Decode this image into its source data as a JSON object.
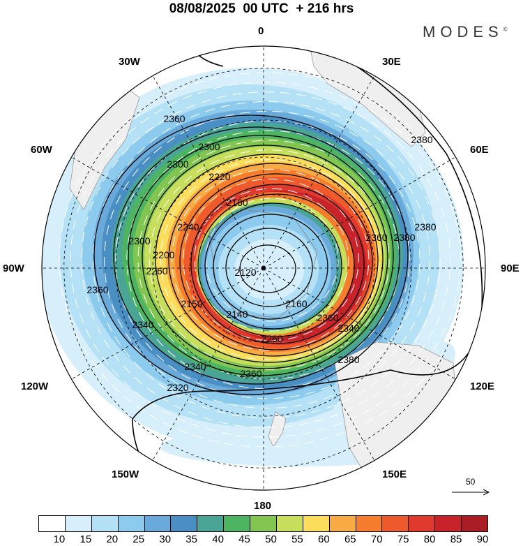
{
  "title": "08/08/2025  00 UTC  + 216 hrs",
  "logo": {
    "text": "MODES",
    "mark": "©"
  },
  "longitude_labels": {
    "top": "0",
    "top_right": "30E",
    "upper_right": "60E",
    "right": "90E",
    "lower_right": "120E",
    "bottom_right": "150E",
    "bottom": "180",
    "bottom_left": "150W",
    "lower_left": "120W",
    "left": "90W",
    "upper_left": "60W",
    "top_left": "30W"
  },
  "contour_labels": [
    "2360",
    "2300",
    "2300",
    "2220",
    "2240",
    "2160",
    "2120",
    "2140",
    "2160",
    "2200",
    "2260",
    "2300",
    "2320",
    "2340",
    "2360",
    "2380",
    "2380",
    "2380",
    "2360",
    "2340",
    "2360",
    "2260",
    "2150",
    "2360",
    "2340",
    "2380"
  ],
  "reference_vector": {
    "label": "50"
  },
  "colorbar": {
    "labels": [
      "10",
      "15",
      "20",
      "25",
      "30",
      "35",
      "40",
      "45",
      "50",
      "55",
      "60",
      "65",
      "70",
      "75",
      "80",
      "85",
      "90"
    ],
    "colors": [
      "#ffffff",
      "#d6effb",
      "#b4e1f6",
      "#8ccaee",
      "#6aaada",
      "#4a8fc4",
      "#4aa597",
      "#4db562",
      "#82c651",
      "#c7de5c",
      "#fbdd5b",
      "#f8aa44",
      "#f67c2e",
      "#ee5a2c",
      "#df3a2d",
      "#c8232b",
      "#ab1d24",
      "#8d1b1f"
    ]
  }
}
